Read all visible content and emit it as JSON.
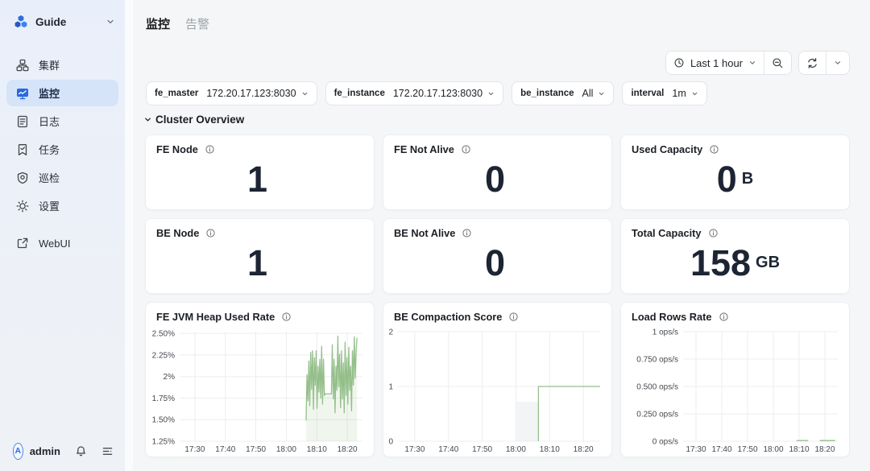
{
  "sidebar": {
    "logo_label": "Guide",
    "items": [
      {
        "label": "集群",
        "icon": "cluster-icon",
        "active": false
      },
      {
        "label": "监控",
        "icon": "monitor-icon",
        "active": true
      },
      {
        "label": "日志",
        "icon": "logs-icon",
        "active": false
      },
      {
        "label": "任务",
        "icon": "tasks-icon",
        "active": false
      },
      {
        "label": "巡检",
        "icon": "inspection-shield-icon",
        "active": false
      },
      {
        "label": "设置",
        "icon": "settings-gear-icon",
        "active": false
      },
      {
        "label": "WebUI",
        "icon": "external-link-icon",
        "active": false
      }
    ],
    "user": {
      "name": "admin",
      "avatar_letter": "A"
    }
  },
  "header": {
    "tabs": [
      {
        "label": "监控",
        "active": true
      },
      {
        "label": "告警",
        "active": false
      }
    ]
  },
  "toolbar": {
    "time_range": "Last 1 hour",
    "icons": [
      "clock-icon",
      "chevron-down-icon",
      "zoom-out-icon",
      "refresh-icon",
      "chevron-down-icon"
    ]
  },
  "filters": [
    {
      "name": "fe_master",
      "value": "172.20.17.123:8030"
    },
    {
      "name": "fe_instance",
      "value": "172.20.17.123:8030"
    },
    {
      "name": "be_instance",
      "value": "All"
    },
    {
      "name": "interval",
      "value": "1m"
    }
  ],
  "section": {
    "title": "Cluster Overview"
  },
  "stat_cards": [
    {
      "title": "FE Node",
      "value": "1",
      "unit": ""
    },
    {
      "title": "FE Not Alive",
      "value": "0",
      "unit": ""
    },
    {
      "title": "Used Capacity",
      "value": "0",
      "unit": "B"
    },
    {
      "title": "BE Node",
      "value": "1",
      "unit": ""
    },
    {
      "title": "BE Not Alive",
      "value": "0",
      "unit": ""
    },
    {
      "title": "Total Capacity",
      "value": "158",
      "unit": "GB"
    }
  ],
  "colors": {
    "accent_blue": "#2f6de0",
    "active_pill_bg": "#d6e4fa",
    "chart_line_green": "#94bf8a",
    "card_bg": "#ffffff",
    "main_bg": "#f5f6f7",
    "stat_value": "#1d2534"
  },
  "chart_data": [
    {
      "type": "line",
      "title": "FE JVM Heap Used Rate",
      "xlabel": "",
      "ylabel": "",
      "xlim": [
        0,
        60
      ],
      "ylim": [
        1.25,
        2.52
      ],
      "grid": true,
      "legend": "none",
      "xticks": [
        {
          "v": 5,
          "label": "17:30"
        },
        {
          "v": 15,
          "label": "17:40"
        },
        {
          "v": 25,
          "label": "17:50"
        },
        {
          "v": 35,
          "label": "18:00"
        },
        {
          "v": 45,
          "label": "18:10"
        },
        {
          "v": 55,
          "label": "18:20"
        }
      ],
      "yticks": [
        {
          "v": 2.5,
          "label": "2.50%"
        },
        {
          "v": 2.25,
          "label": "2.25%"
        },
        {
          "v": 2.0,
          "label": "2%"
        },
        {
          "v": 1.75,
          "label": "1.75%"
        },
        {
          "v": 1.5,
          "label": "1.50%"
        },
        {
          "v": 1.25,
          "label": "1.25%"
        }
      ],
      "series": [
        {
          "name": "fe_jvm_heap_used_rate",
          "color": "#94bf8a",
          "fill": true,
          "points": [
            [
              41.5,
              1.49
            ],
            [
              41.8,
              2.02
            ],
            [
              42.1,
              1.72
            ],
            [
              42.4,
              2.18
            ],
            [
              42.7,
              1.66
            ],
            [
              43.0,
              2.28
            ],
            [
              43.3,
              1.85
            ],
            [
              43.6,
              2.3
            ],
            [
              43.9,
              1.62
            ],
            [
              44.2,
              2.22
            ],
            [
              44.5,
              1.9
            ],
            [
              44.8,
              2.3
            ],
            [
              45.1,
              1.63
            ],
            [
              45.4,
              2.12
            ],
            [
              45.7,
              1.82
            ],
            [
              46.0,
              2.2
            ],
            [
              46.3,
              1.75
            ],
            [
              46.6,
              2.35
            ],
            [
              46.9,
              1.68
            ],
            [
              47.2,
              2.2
            ],
            [
              47.5,
              1.78
            ],
            [
              47.8,
              1.8
            ],
            [
              49.8,
              1.8
            ],
            [
              50.1,
              2.37
            ],
            [
              50.4,
              1.74
            ],
            [
              50.7,
              2.2
            ],
            [
              51.0,
              1.58
            ],
            [
              51.3,
              2.12
            ],
            [
              51.6,
              1.84
            ],
            [
              51.9,
              2.47
            ],
            [
              52.2,
              1.88
            ],
            [
              52.5,
              2.26
            ],
            [
              52.8,
              1.64
            ],
            [
              53.1,
              2.3
            ],
            [
              53.4,
              1.74
            ],
            [
              53.7,
              2.16
            ],
            [
              54.0,
              1.58
            ],
            [
              54.3,
              2.4
            ],
            [
              54.6,
              1.78
            ],
            [
              54.9,
              2.22
            ],
            [
              55.2,
              1.68
            ],
            [
              55.5,
              2.34
            ],
            [
              55.8,
              1.84
            ],
            [
              56.1,
              2.12
            ],
            [
              56.4,
              1.6
            ],
            [
              56.7,
              2.3
            ],
            [
              57.0,
              1.9
            ],
            [
              57.3,
              2.46
            ],
            [
              57.6,
              1.98
            ],
            [
              57.9,
              2.3
            ],
            [
              58.2,
              2.45
            ]
          ]
        }
      ]
    },
    {
      "type": "line",
      "title": "BE Compaction Score",
      "xlabel": "",
      "ylabel": "",
      "xlim": [
        0,
        60
      ],
      "ylim": [
        0,
        2
      ],
      "grid": true,
      "legend": "none",
      "xticks": [
        {
          "v": 5,
          "label": "17:30"
        },
        {
          "v": 15,
          "label": "17:40"
        },
        {
          "v": 25,
          "label": "17:50"
        },
        {
          "v": 35,
          "label": "18:00"
        },
        {
          "v": 45,
          "label": "18:10"
        },
        {
          "v": 55,
          "label": "18:20"
        }
      ],
      "yticks": [
        {
          "v": 2,
          "label": "2"
        },
        {
          "v": 1,
          "label": "1"
        },
        {
          "v": 0,
          "label": "0"
        }
      ],
      "shades": [
        {
          "x0": 35.2,
          "x1": 41.7,
          "y0": 0,
          "y1": 0.72,
          "color": "#f3f4f6"
        }
      ],
      "series": [
        {
          "name": "be_compaction_score",
          "color": "#94bf8a",
          "fill": false,
          "points": [
            [
              41.7,
              0
            ],
            [
              41.7,
              1
            ],
            [
              60,
              1
            ]
          ]
        }
      ]
    },
    {
      "type": "line",
      "title": "Load Rows Rate",
      "xlabel": "",
      "ylabel": "",
      "xlim": [
        0,
        60
      ],
      "ylim": [
        0,
        1
      ],
      "grid": true,
      "legend": "none",
      "xticks": [
        {
          "v": 5,
          "label": "17:30"
        },
        {
          "v": 15,
          "label": "17:40"
        },
        {
          "v": 25,
          "label": "17:50"
        },
        {
          "v": 35,
          "label": "18:00"
        },
        {
          "v": 45,
          "label": "18:10"
        },
        {
          "v": 55,
          "label": "18:20"
        }
      ],
      "yticks": [
        {
          "v": 1,
          "label": "1 ops/s"
        },
        {
          "v": 0.75,
          "label": "0.750 ops/s"
        },
        {
          "v": 0.5,
          "label": "0.500 ops/s"
        },
        {
          "v": 0.25,
          "label": "0.250 ops/s"
        },
        {
          "v": 0,
          "label": "0 ops/s"
        }
      ],
      "series": [
        {
          "name": "load_rows_rate",
          "color": "#94bf8a",
          "fill": false,
          "points": [
            [
              44,
              0.006
            ],
            [
              48.5,
              0.006
            ],
            null,
            [
              53,
              0.006
            ],
            [
              59,
              0.006
            ]
          ]
        }
      ]
    }
  ]
}
